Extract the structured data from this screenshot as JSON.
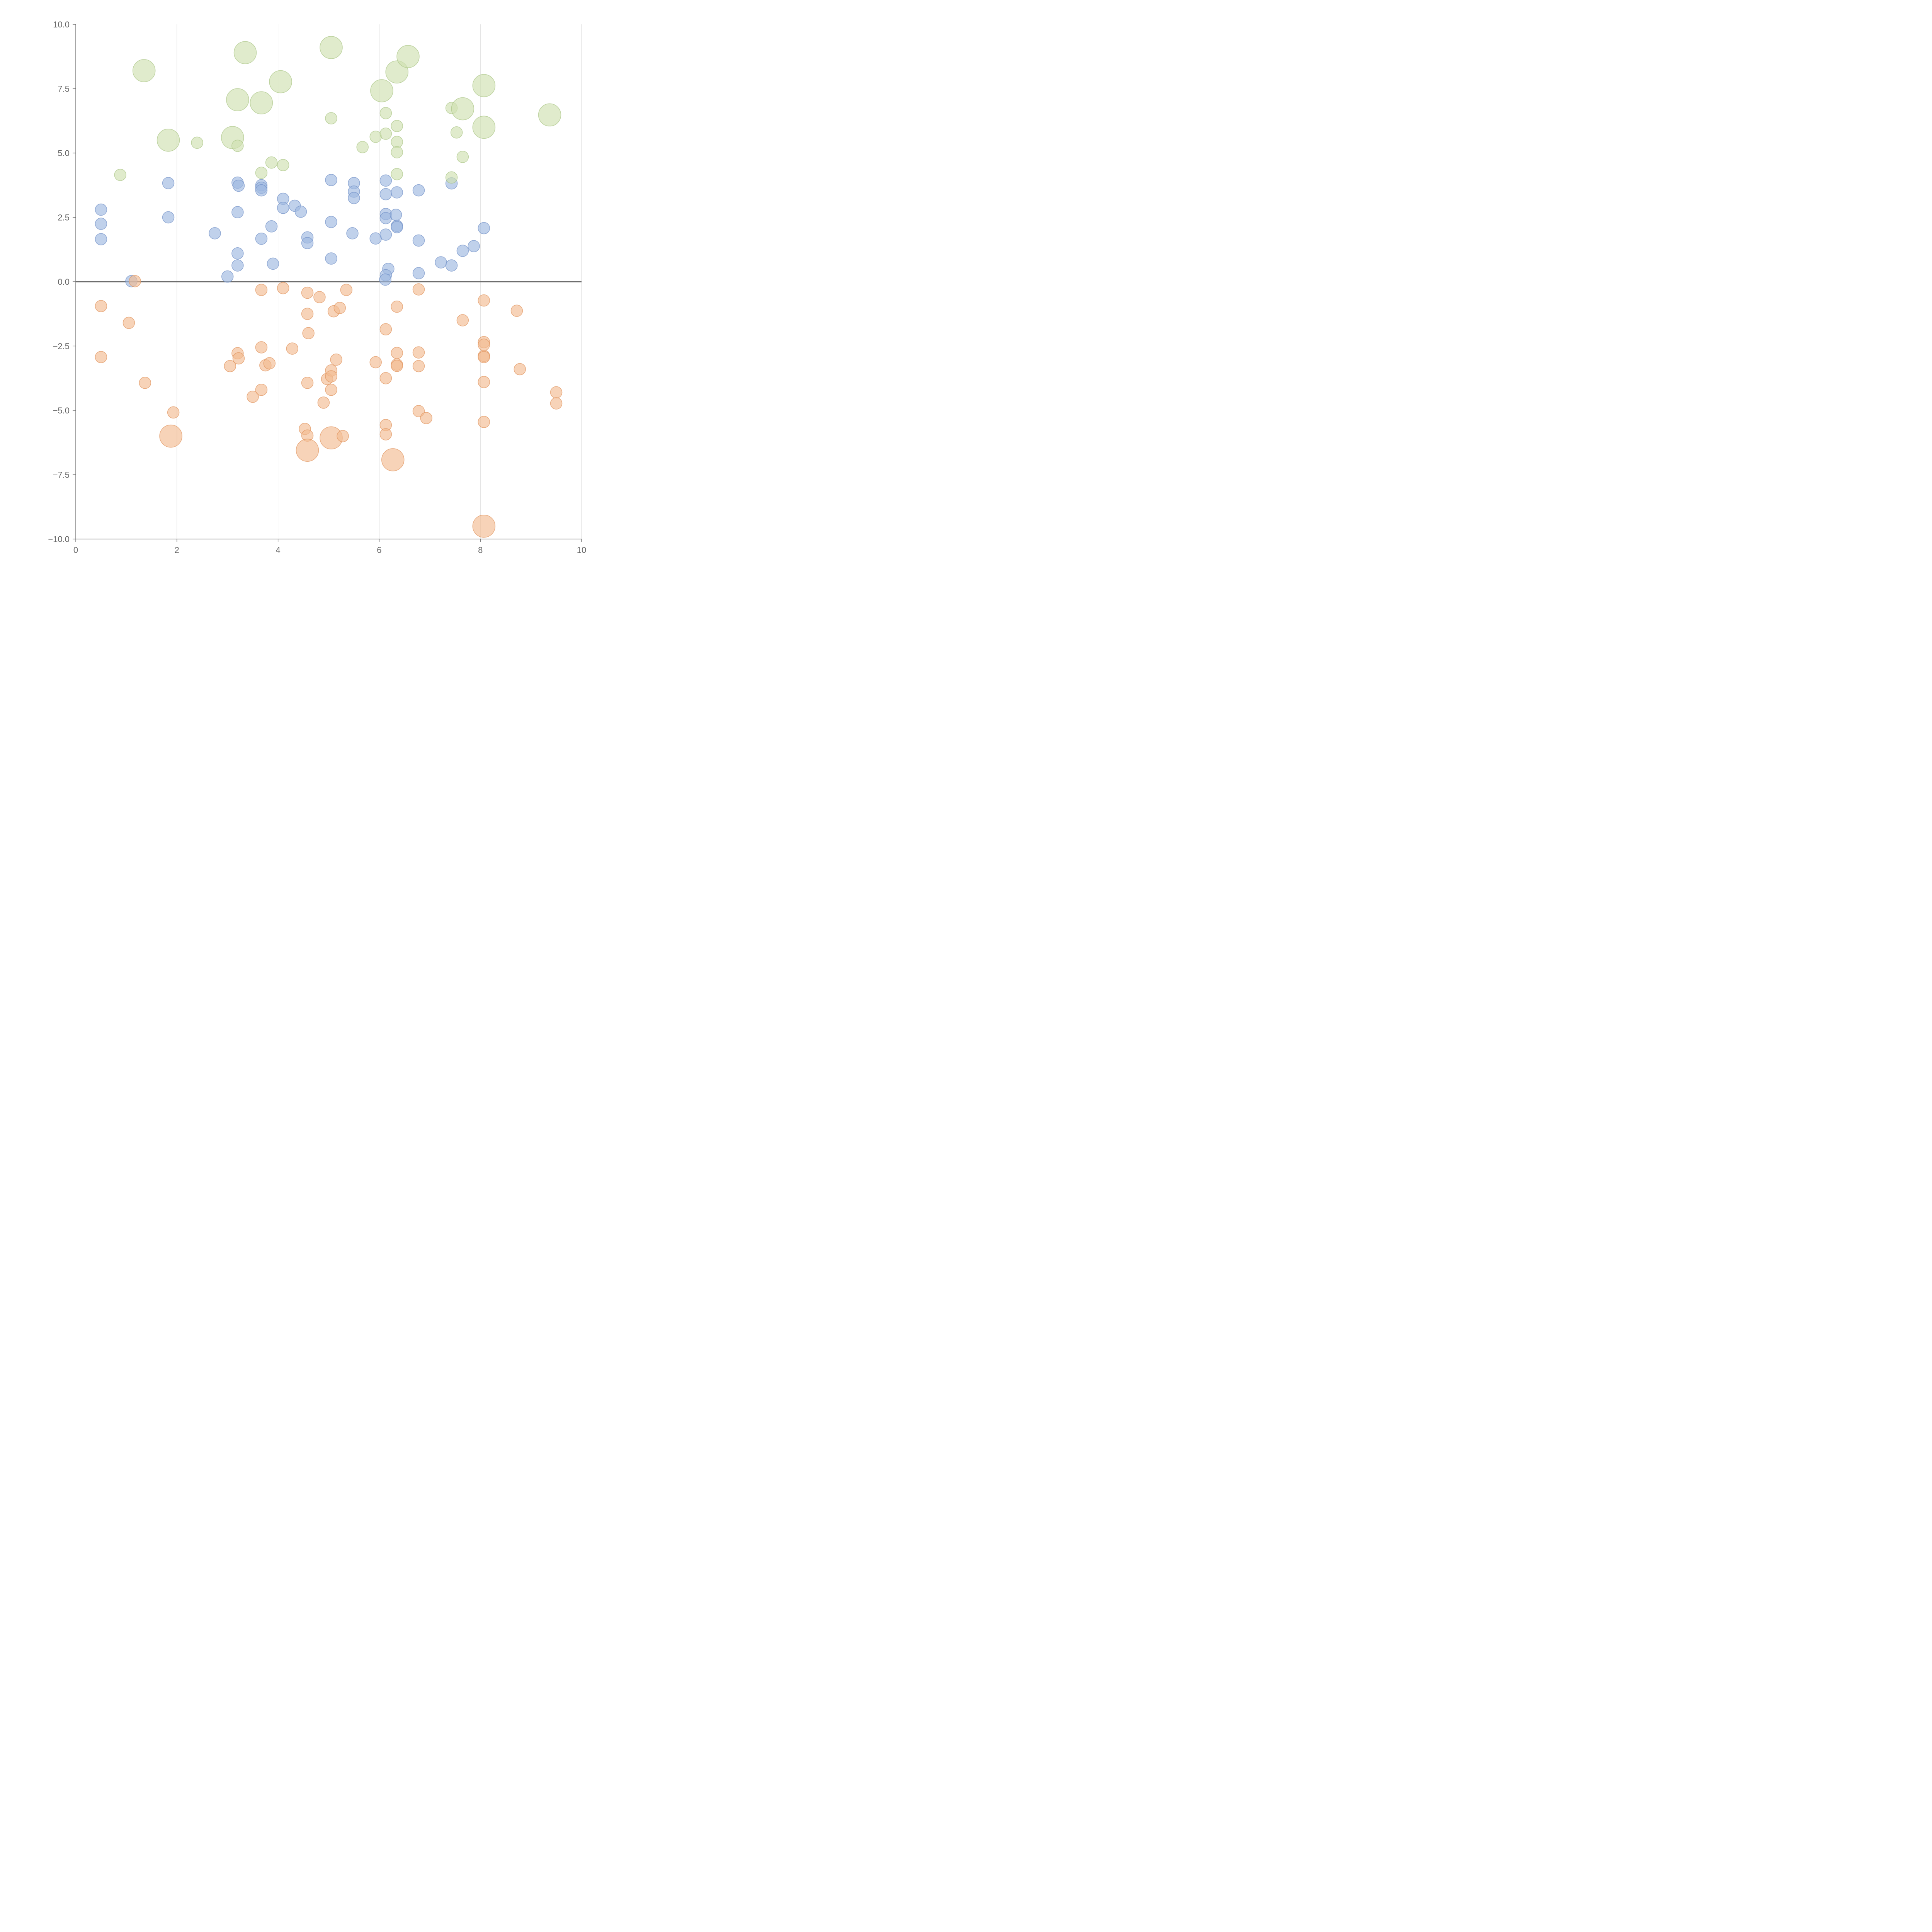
{
  "chart_data": {
    "type": "scatter",
    "title": "",
    "xlabel": "",
    "ylabel": "",
    "xlim": [
      0,
      10
    ],
    "ylim": [
      -10,
      10
    ],
    "x_ticks": [
      {
        "value": 0,
        "label": "0"
      },
      {
        "value": 2,
        "label": "2"
      },
      {
        "value": 4,
        "label": "4"
      },
      {
        "value": 6,
        "label": "6"
      },
      {
        "value": 8,
        "label": "8"
      },
      {
        "value": 10,
        "label": "10"
      }
    ],
    "y_ticks": [
      {
        "value": 10,
        "label": "10.0"
      },
      {
        "value": 7.5,
        "label": "7.5"
      },
      {
        "value": 5,
        "label": "5.0"
      },
      {
        "value": 2.5,
        "label": "2.5"
      },
      {
        "value": 0,
        "label": "0.0"
      },
      {
        "value": -2.5,
        "label": "−2.5"
      },
      {
        "value": -5,
        "label": "−5.0"
      },
      {
        "value": -7.5,
        "label": "−7.5"
      },
      {
        "value": -10,
        "label": "−10.0"
      }
    ],
    "grid": {
      "vertical": true,
      "horizontal": false
    },
    "reference_line_y": 0,
    "legend": "none",
    "series": [
      {
        "color": "#9eb8e0",
        "stroke": "#6f8fc6",
        "points": [
          {
            "x": 0.5,
            "y": 2.8,
            "size": "s"
          },
          {
            "x": 0.5,
            "y": 2.25,
            "size": "s"
          },
          {
            "x": 0.5,
            "y": 1.65,
            "size": "s"
          },
          {
            "x": 1.1,
            "y": 0.02,
            "size": "s"
          },
          {
            "x": 1.83,
            "y": 3.83,
            "size": "s"
          },
          {
            "x": 1.83,
            "y": 2.5,
            "size": "s"
          },
          {
            "x": 2.75,
            "y": 1.88,
            "size": "s"
          },
          {
            "x": 3.0,
            "y": 0.2,
            "size": "s"
          },
          {
            "x": 3.2,
            "y": 3.85,
            "size": "s"
          },
          {
            "x": 3.22,
            "y": 3.73,
            "size": "s"
          },
          {
            "x": 3.2,
            "y": 2.7,
            "size": "s"
          },
          {
            "x": 3.2,
            "y": 1.1,
            "size": "s"
          },
          {
            "x": 3.2,
            "y": 0.63,
            "size": "s"
          },
          {
            "x": 3.67,
            "y": 3.75,
            "size": "s"
          },
          {
            "x": 3.67,
            "y": 3.65,
            "size": "s"
          },
          {
            "x": 3.67,
            "y": 3.55,
            "size": "s"
          },
          {
            "x": 3.67,
            "y": 1.67,
            "size": "s"
          },
          {
            "x": 3.87,
            "y": 2.15,
            "size": "s"
          },
          {
            "x": 3.9,
            "y": 0.7,
            "size": "s"
          },
          {
            "x": 4.1,
            "y": 3.22,
            "size": "s"
          },
          {
            "x": 4.1,
            "y": 2.87,
            "size": "s"
          },
          {
            "x": 4.33,
            "y": 2.95,
            "size": "s"
          },
          {
            "x": 4.45,
            "y": 2.72,
            "size": "s"
          },
          {
            "x": 4.58,
            "y": 1.72,
            "size": "s"
          },
          {
            "x": 4.58,
            "y": 1.5,
            "size": "s"
          },
          {
            "x": 5.05,
            "y": 3.95,
            "size": "s"
          },
          {
            "x": 5.05,
            "y": 2.32,
            "size": "s"
          },
          {
            "x": 5.05,
            "y": 0.9,
            "size": "s"
          },
          {
            "x": 5.47,
            "y": 1.88,
            "size": "s"
          },
          {
            "x": 5.5,
            "y": 3.83,
            "size": "s"
          },
          {
            "x": 5.5,
            "y": 3.5,
            "size": "s"
          },
          {
            "x": 5.5,
            "y": 3.25,
            "size": "s"
          },
          {
            "x": 5.93,
            "y": 1.68,
            "size": "s"
          },
          {
            "x": 6.13,
            "y": 3.93,
            "size": "s"
          },
          {
            "x": 6.13,
            "y": 3.4,
            "size": "s"
          },
          {
            "x": 6.13,
            "y": 2.63,
            "size": "s"
          },
          {
            "x": 6.13,
            "y": 2.47,
            "size": "s"
          },
          {
            "x": 6.13,
            "y": 1.83,
            "size": "s"
          },
          {
            "x": 6.18,
            "y": 0.5,
            "size": "s"
          },
          {
            "x": 6.13,
            "y": 0.25,
            "size": "s"
          },
          {
            "x": 6.12,
            "y": 0.08,
            "size": "s"
          },
          {
            "x": 6.33,
            "y": 2.6,
            "size": "s"
          },
          {
            "x": 6.35,
            "y": 3.47,
            "size": "s"
          },
          {
            "x": 6.35,
            "y": 2.17,
            "size": "s"
          },
          {
            "x": 6.35,
            "y": 2.12,
            "size": "s"
          },
          {
            "x": 6.78,
            "y": 3.55,
            "size": "s"
          },
          {
            "x": 6.78,
            "y": 1.6,
            "size": "s"
          },
          {
            "x": 6.78,
            "y": 0.33,
            "size": "s"
          },
          {
            "x": 7.22,
            "y": 0.75,
            "size": "s"
          },
          {
            "x": 7.43,
            "y": 3.82,
            "size": "s"
          },
          {
            "x": 7.43,
            "y": 0.63,
            "size": "s"
          },
          {
            "x": 7.65,
            "y": 1.2,
            "size": "s"
          },
          {
            "x": 7.87,
            "y": 1.38,
            "size": "s"
          },
          {
            "x": 8.07,
            "y": 2.08,
            "size": "s"
          }
        ]
      },
      {
        "color": "#f2bb92",
        "stroke": "#e0915a",
        "points": [
          {
            "x": 1.17,
            "y": 0.02,
            "size": "s"
          },
          {
            "x": 0.5,
            "y": -0.95,
            "size": "s"
          },
          {
            "x": 0.5,
            "y": -2.93,
            "size": "s"
          },
          {
            "x": 1.05,
            "y": -1.6,
            "size": "s"
          },
          {
            "x": 1.37,
            "y": -3.93,
            "size": "s"
          },
          {
            "x": 1.93,
            "y": -5.08,
            "size": "s"
          },
          {
            "x": 1.88,
            "y": -6.0,
            "size": "l"
          },
          {
            "x": 3.05,
            "y": -3.28,
            "size": "s"
          },
          {
            "x": 3.2,
            "y": -2.78,
            "size": "s"
          },
          {
            "x": 3.22,
            "y": -2.98,
            "size": "s"
          },
          {
            "x": 3.5,
            "y": -4.47,
            "size": "s"
          },
          {
            "x": 3.67,
            "y": -0.32,
            "size": "s"
          },
          {
            "x": 3.67,
            "y": -2.55,
            "size": "s"
          },
          {
            "x": 3.67,
            "y": -4.2,
            "size": "s"
          },
          {
            "x": 3.75,
            "y": -3.25,
            "size": "s"
          },
          {
            "x": 3.83,
            "y": -3.17,
            "size": "s"
          },
          {
            "x": 4.1,
            "y": -0.25,
            "size": "s"
          },
          {
            "x": 4.28,
            "y": -2.6,
            "size": "s"
          },
          {
            "x": 4.58,
            "y": -0.43,
            "size": "s"
          },
          {
            "x": 4.58,
            "y": -1.25,
            "size": "s"
          },
          {
            "x": 4.6,
            "y": -2.0,
            "size": "s"
          },
          {
            "x": 4.58,
            "y": -3.93,
            "size": "s"
          },
          {
            "x": 4.53,
            "y": -5.72,
            "size": "s"
          },
          {
            "x": 4.58,
            "y": -5.98,
            "size": "s"
          },
          {
            "x": 4.58,
            "y": -6.55,
            "size": "l"
          },
          {
            "x": 4.82,
            "y": -0.6,
            "size": "s"
          },
          {
            "x": 4.9,
            "y": -4.7,
            "size": "s"
          },
          {
            "x": 4.97,
            "y": -3.78,
            "size": "s"
          },
          {
            "x": 5.05,
            "y": -3.45,
            "size": "s"
          },
          {
            "x": 5.05,
            "y": -3.68,
            "size": "s"
          },
          {
            "x": 5.05,
            "y": -4.2,
            "size": "s"
          },
          {
            "x": 5.05,
            "y": -6.07,
            "size": "l"
          },
          {
            "x": 5.1,
            "y": -1.15,
            "size": "s"
          },
          {
            "x": 5.15,
            "y": -3.03,
            "size": "s"
          },
          {
            "x": 5.22,
            "y": -1.02,
            "size": "s"
          },
          {
            "x": 5.28,
            "y": -6.0,
            "size": "s"
          },
          {
            "x": 5.35,
            "y": -0.32,
            "size": "s"
          },
          {
            "x": 5.93,
            "y": -3.13,
            "size": "s"
          },
          {
            "x": 6.13,
            "y": -1.85,
            "size": "s"
          },
          {
            "x": 6.13,
            "y": -3.75,
            "size": "s"
          },
          {
            "x": 6.13,
            "y": -5.57,
            "size": "s"
          },
          {
            "x": 6.13,
            "y": -5.93,
            "size": "s"
          },
          {
            "x": 6.27,
            "y": -6.92,
            "size": "l"
          },
          {
            "x": 6.35,
            "y": -0.97,
            "size": "s"
          },
          {
            "x": 6.35,
            "y": -2.77,
            "size": "s"
          },
          {
            "x": 6.35,
            "y": -3.22,
            "size": "s"
          },
          {
            "x": 6.35,
            "y": -3.27,
            "size": "s"
          },
          {
            "x": 6.78,
            "y": -0.3,
            "size": "s"
          },
          {
            "x": 6.78,
            "y": -2.75,
            "size": "s"
          },
          {
            "x": 6.78,
            "y": -3.28,
            "size": "s"
          },
          {
            "x": 6.78,
            "y": -5.03,
            "size": "s"
          },
          {
            "x": 6.93,
            "y": -5.3,
            "size": "s"
          },
          {
            "x": 7.65,
            "y": -1.5,
            "size": "s"
          },
          {
            "x": 8.07,
            "y": -0.73,
            "size": "s"
          },
          {
            "x": 8.07,
            "y": -2.35,
            "size": "s"
          },
          {
            "x": 8.07,
            "y": -2.45,
            "size": "s"
          },
          {
            "x": 8.07,
            "y": -2.88,
            "size": "s"
          },
          {
            "x": 8.07,
            "y": -2.93,
            "size": "s"
          },
          {
            "x": 8.07,
            "y": -3.9,
            "size": "s"
          },
          {
            "x": 8.07,
            "y": -5.45,
            "size": "s"
          },
          {
            "x": 8.07,
            "y": -9.5,
            "size": "l"
          },
          {
            "x": 8.72,
            "y": -1.13,
            "size": "s"
          },
          {
            "x": 8.78,
            "y": -3.4,
            "size": "s"
          },
          {
            "x": 9.5,
            "y": -4.3,
            "size": "s"
          },
          {
            "x": 9.5,
            "y": -4.73,
            "size": "s"
          }
        ]
      },
      {
        "color": "#cfe0b0",
        "stroke": "#a9c585",
        "points": [
          {
            "x": 0.88,
            "y": 4.15,
            "size": "s"
          },
          {
            "x": 1.35,
            "y": 8.2,
            "size": "l"
          },
          {
            "x": 1.83,
            "y": 5.5,
            "size": "l"
          },
          {
            "x": 2.4,
            "y": 5.4,
            "size": "s"
          },
          {
            "x": 3.1,
            "y": 5.6,
            "size": "l"
          },
          {
            "x": 3.2,
            "y": 7.07,
            "size": "l"
          },
          {
            "x": 3.2,
            "y": 5.28,
            "size": "s"
          },
          {
            "x": 3.35,
            "y": 8.9,
            "size": "l"
          },
          {
            "x": 3.67,
            "y": 6.95,
            "size": "l"
          },
          {
            "x": 3.67,
            "y": 4.23,
            "size": "s"
          },
          {
            "x": 3.87,
            "y": 4.63,
            "size": "s"
          },
          {
            "x": 4.05,
            "y": 7.77,
            "size": "l"
          },
          {
            "x": 4.1,
            "y": 4.53,
            "size": "s"
          },
          {
            "x": 5.05,
            "y": 9.1,
            "size": "l"
          },
          {
            "x": 5.05,
            "y": 6.35,
            "size": "s"
          },
          {
            "x": 5.67,
            "y": 5.23,
            "size": "s"
          },
          {
            "x": 5.93,
            "y": 5.63,
            "size": "s"
          },
          {
            "x": 6.05,
            "y": 7.42,
            "size": "l"
          },
          {
            "x": 6.13,
            "y": 6.55,
            "size": "s"
          },
          {
            "x": 6.13,
            "y": 5.75,
            "size": "s"
          },
          {
            "x": 6.35,
            "y": 8.15,
            "size": "l"
          },
          {
            "x": 6.35,
            "y": 6.05,
            "size": "s"
          },
          {
            "x": 6.35,
            "y": 5.43,
            "size": "s"
          },
          {
            "x": 6.35,
            "y": 5.03,
            "size": "s"
          },
          {
            "x": 6.35,
            "y": 4.18,
            "size": "s"
          },
          {
            "x": 6.57,
            "y": 8.75,
            "size": "l"
          },
          {
            "x": 7.43,
            "y": 6.75,
            "size": "s"
          },
          {
            "x": 7.43,
            "y": 4.05,
            "size": "s"
          },
          {
            "x": 7.53,
            "y": 5.8,
            "size": "s"
          },
          {
            "x": 7.65,
            "y": 6.72,
            "size": "l"
          },
          {
            "x": 7.65,
            "y": 4.85,
            "size": "s"
          },
          {
            "x": 8.07,
            "y": 7.62,
            "size": "l"
          },
          {
            "x": 8.07,
            "y": 6.0,
            "size": "l"
          },
          {
            "x": 9.37,
            "y": 6.48,
            "size": "l"
          }
        ]
      }
    ]
  }
}
